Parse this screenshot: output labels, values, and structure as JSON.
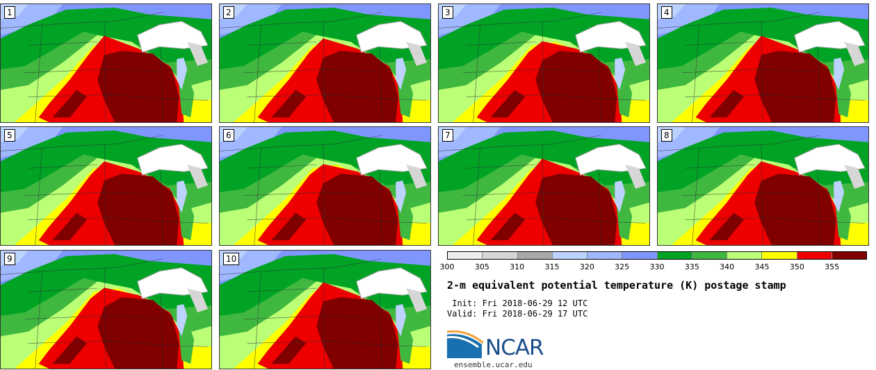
{
  "stamps": [
    {
      "label": "1"
    },
    {
      "label": "2"
    },
    {
      "label": "3"
    },
    {
      "label": "4"
    },
    {
      "label": "5"
    },
    {
      "label": "6"
    },
    {
      "label": "7"
    },
    {
      "label": "8"
    },
    {
      "label": "9"
    },
    {
      "label": "10"
    }
  ],
  "colorbar": {
    "colors": [
      "#eeeeee",
      "#d6d6d6",
      "#a9a9a9",
      "#bcd2ff",
      "#a0b8ff",
      "#7f96ff",
      "#00a324",
      "#40b840",
      "#bbff77",
      "#ffff00",
      "#ee0000",
      "#800000"
    ],
    "ticks": [
      "300",
      "305",
      "310",
      "315",
      "320",
      "325",
      "330",
      "335",
      "340",
      "345",
      "350",
      "355"
    ]
  },
  "title": "2-m equivalent potential temperature (K) postage stamp",
  "init": " Init: Fri 2018-06-29 12 UTC",
  "valid": "Valid: Fri 2018-06-29 17 UTC",
  "logo": {
    "text": "NCAR",
    "site": "ensemble.ucar.edu",
    "color": "#1a4e8c"
  }
}
